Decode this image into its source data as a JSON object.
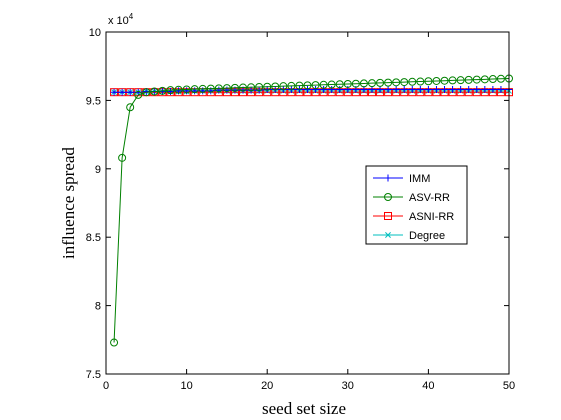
{
  "chart_data": {
    "type": "line",
    "xlabel": "seed set size",
    "ylabel": "influence spread",
    "xlim": [
      0,
      50
    ],
    "ylim": [
      7.5,
      10
    ],
    "y_multiplier": "x 10",
    "y_multiplier_exp": "4",
    "x_ticks": [
      "0",
      "10",
      "20",
      "30",
      "40",
      "50"
    ],
    "y_ticks": [
      "7.5",
      "8",
      "8.5",
      "9",
      "9.5",
      "10"
    ],
    "grid": false,
    "legend_position": "right-middle",
    "x": [
      1,
      2,
      3,
      4,
      5,
      6,
      7,
      8,
      9,
      10,
      11,
      12,
      13,
      14,
      15,
      16,
      17,
      18,
      19,
      20,
      21,
      22,
      23,
      24,
      25,
      26,
      27,
      28,
      29,
      30,
      31,
      32,
      33,
      34,
      35,
      36,
      37,
      38,
      39,
      40,
      41,
      42,
      43,
      44,
      45,
      46,
      47,
      48,
      49,
      50
    ],
    "series": [
      {
        "name": "IMM",
        "color": "#0000ff",
        "marker": "plus",
        "values": [
          9.56,
          9.56,
          9.56,
          9.56,
          9.565,
          9.565,
          9.565,
          9.565,
          9.57,
          9.57,
          9.57,
          9.57,
          9.57,
          9.575,
          9.575,
          9.575,
          9.575,
          9.575,
          9.575,
          9.58,
          9.58,
          9.58,
          9.58,
          9.58,
          9.58,
          9.58,
          9.58,
          9.58,
          9.58,
          9.58,
          9.58,
          9.58,
          9.58,
          9.58,
          9.58,
          9.58,
          9.58,
          9.58,
          9.58,
          9.58,
          9.58,
          9.58,
          9.58,
          9.58,
          9.58,
          9.58,
          9.58,
          9.58,
          9.58,
          9.58
        ]
      },
      {
        "name": "ASV-RR",
        "color": "#008000",
        "marker": "circle",
        "values": [
          7.73,
          9.08,
          9.45,
          9.54,
          9.56,
          9.565,
          9.57,
          9.575,
          9.578,
          9.58,
          9.582,
          9.584,
          9.586,
          9.588,
          9.59,
          9.592,
          9.594,
          9.596,
          9.598,
          9.6,
          9.602,
          9.604,
          9.606,
          9.608,
          9.61,
          9.612,
          9.614,
          9.616,
          9.618,
          9.62,
          9.622,
          9.624,
          9.626,
          9.628,
          9.63,
          9.632,
          9.634,
          9.636,
          9.638,
          9.64,
          9.642,
          9.644,
          9.646,
          9.648,
          9.65,
          9.652,
          9.654,
          9.656,
          9.658,
          9.66
        ]
      },
      {
        "name": "ASNI-RR",
        "color": "#ff0000",
        "marker": "square",
        "values": [
          9.56,
          9.56,
          9.56,
          9.56,
          9.56,
          9.56,
          9.56,
          9.56,
          9.56,
          9.56,
          9.56,
          9.56,
          9.56,
          9.56,
          9.56,
          9.56,
          9.56,
          9.56,
          9.56,
          9.56,
          9.56,
          9.56,
          9.56,
          9.56,
          9.56,
          9.56,
          9.56,
          9.56,
          9.56,
          9.56,
          9.56,
          9.56,
          9.56,
          9.56,
          9.56,
          9.56,
          9.56,
          9.56,
          9.56,
          9.56,
          9.56,
          9.56,
          9.56,
          9.56,
          9.56,
          9.56,
          9.56,
          9.56,
          9.56,
          9.56
        ]
      },
      {
        "name": "Degree",
        "color": "#00bfbf",
        "marker": "x",
        "values": [
          9.56,
          9.56,
          9.56,
          9.56,
          9.565,
          9.565,
          9.565,
          9.565,
          9.565,
          9.565,
          9.57,
          9.57,
          9.57,
          9.57,
          9.57,
          9.57,
          9.57,
          9.57,
          9.57,
          9.57,
          9.57,
          9.57,
          9.57,
          9.57,
          9.57,
          9.57,
          9.57,
          9.57,
          9.57,
          9.57,
          9.57,
          9.57,
          9.57,
          9.57,
          9.57,
          9.57,
          9.57,
          9.57,
          9.57,
          9.57,
          9.57,
          9.57,
          9.57,
          9.57,
          9.57,
          9.57,
          9.57,
          9.57,
          9.57,
          9.57
        ]
      }
    ]
  }
}
